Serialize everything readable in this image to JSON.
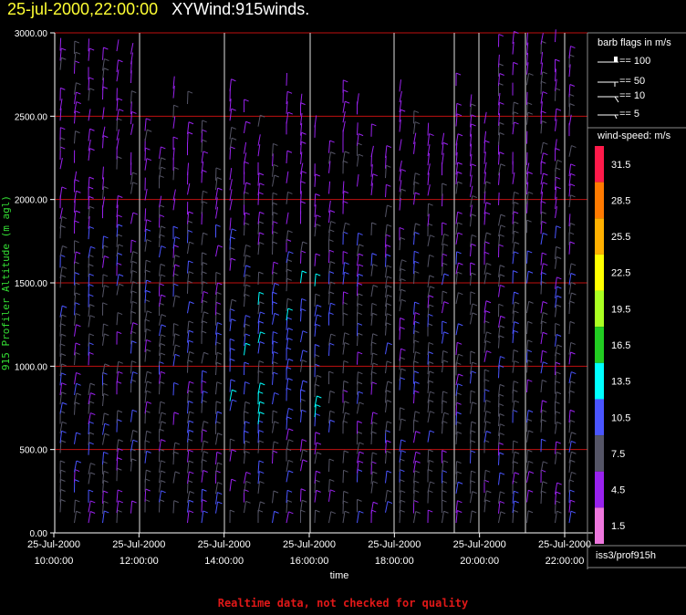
{
  "header": {
    "datetime": "25-jul-2000,22:00:00",
    "title": "XYWind:915winds."
  },
  "footer": {
    "note": "Realtime data, not checked for quality"
  },
  "colors": {
    "grid_h": "#c01010",
    "grid_v": "#e0e0e0",
    "ylabel": "#33dd33",
    "text": "#ffffff"
  },
  "chart_data": {
    "type": "wind-barb",
    "xlabel": "time",
    "ylabel": "915 Profiler Altitude (m agl)",
    "ylim": [
      0,
      3000
    ],
    "y_ticks": [
      "0.00",
      "500.00",
      "1000.00",
      "1500.00",
      "2000.00",
      "2500.00",
      "3000.00"
    ],
    "x_ticks": [
      {
        "date": "25-Jul-2000",
        "time": "10:00:00"
      },
      {
        "date": "25-Jul-2000",
        "time": "12:00:00"
      },
      {
        "date": "25-Jul-2000",
        "time": "14:00:00"
      },
      {
        "date": "25-Jul-2000",
        "time": "16:00:00"
      },
      {
        "date": "25-Jul-2000",
        "time": "18:00:00"
      },
      {
        "date": "25-Jul-2000",
        "time": "20:00:00"
      },
      {
        "date": "25-Jul-2000",
        "time": "22:00:00"
      }
    ],
    "barb_legend": {
      "title": "barb flags in m/s",
      "items": [
        "== 100",
        "== 50",
        "== 10",
        "== 5"
      ]
    },
    "speed_legend": {
      "title": "wind-speed: m/s",
      "bins": [
        {
          "label": "31.5",
          "color": "#ff1a4a"
        },
        {
          "label": "28.5",
          "color": "#ff7a00"
        },
        {
          "label": "25.5",
          "color": "#ffb000"
        },
        {
          "label": "22.5",
          "color": "#ffff00"
        },
        {
          "label": "19.5",
          "color": "#aaff22"
        },
        {
          "label": "16.5",
          "color": "#22cc22"
        },
        {
          "label": "13.5",
          "color": "#00ffff"
        },
        {
          "label": "10.5",
          "color": "#4a55ff"
        },
        {
          "label": "7.5",
          "color": "#555566"
        },
        {
          "label": "4.5",
          "color": "#9922ee"
        },
        {
          "label": "1.5",
          "color": "#ee77dd"
        }
      ]
    },
    "station": "iss3/prof915h"
  }
}
